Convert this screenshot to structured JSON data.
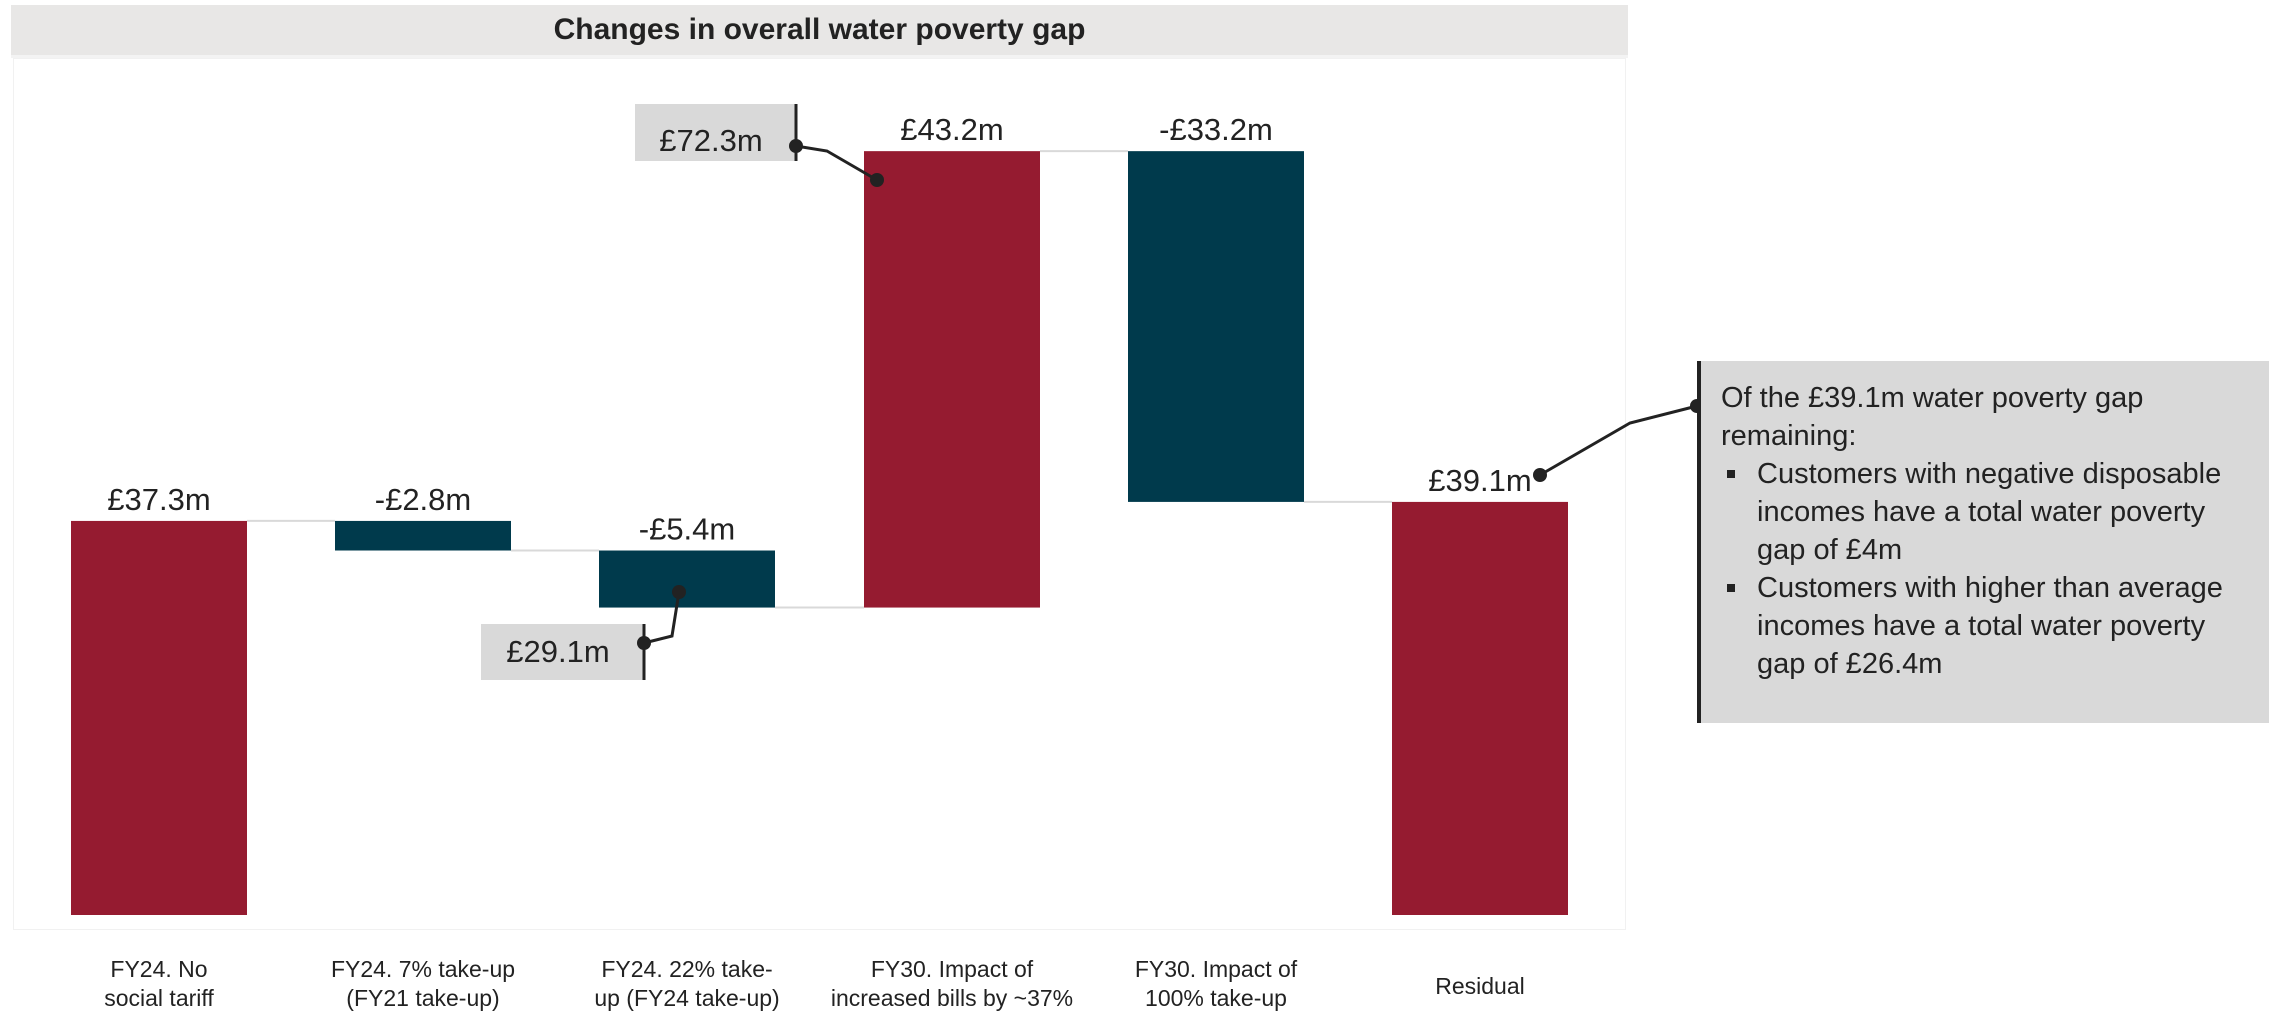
{
  "chart_data": {
    "type": "waterfall",
    "title": "Changes in overall water poverty gap",
    "unit": "£m",
    "categories": [
      "FY24. No\nsocial tariff",
      "FY24. 7% take-up\n(FY21 take-up)",
      "FY24. 22% take-\nup (FY24 take-up)",
      "FY30. Impact of\nincreased bills by ~37%",
      "FY30. Impact of\n100% take-up",
      "Residual"
    ],
    "values": [
      37.3,
      -2.8,
      -5.4,
      43.2,
      -33.2,
      39.1
    ],
    "kinds": [
      "total",
      "delta",
      "delta",
      "delta",
      "delta",
      "total"
    ],
    "data_labels": [
      "£37.3m",
      "-£2.8m",
      "-£5.4m",
      "£43.2m",
      "-£33.2m",
      "£39.1m"
    ],
    "callouts": [
      {
        "text": "£29.1m",
        "value": 29.1,
        "after_category": 2
      },
      {
        "text": "£72.3m",
        "value": 72.3,
        "after_category": 3
      }
    ],
    "colors": {
      "increase": "#951b30",
      "decrease": "#003a4c",
      "total": "#951b30",
      "connector": "#d9d9d9",
      "callout_bg": "#d9d9d9"
    },
    "ylim": [
      0,
      75
    ],
    "grid": false,
    "legend": "none"
  },
  "note": {
    "intro": "Of the £39.1m water poverty gap remaining:",
    "bullets": [
      "Customers with negative disposable incomes have a total water poverty gap of £4m",
      "Customers with higher than average incomes have a total water poverty gap of £26.4m"
    ]
  }
}
